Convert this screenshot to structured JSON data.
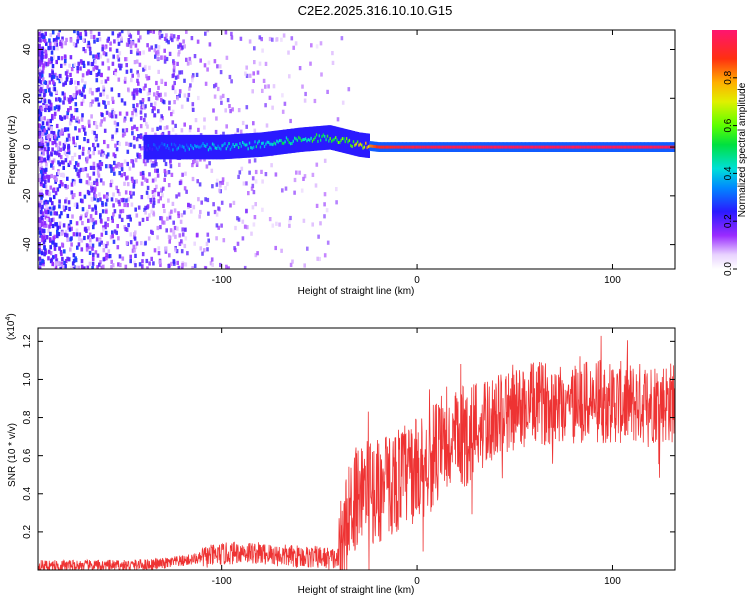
{
  "title": "C2E2.2025.316.10.10.G15",
  "chart_data": [
    {
      "type": "heatmap",
      "xlabel": "Height of straight line (km)",
      "ylabel": "Frequency (Hz)",
      "xlim": [
        -194,
        132
      ],
      "ylim": [
        -50,
        48
      ],
      "xticks": [
        -100,
        0,
        100
      ],
      "yticks": [
        -40,
        -20,
        0,
        20,
        40
      ],
      "colorbar": {
        "label": "Normalized spectral amplitude",
        "range": [
          0,
          1
        ],
        "ticks": [
          "0.0",
          "0.2",
          "0.4",
          "0.6",
          "0.8"
        ]
      },
      "ridge": [
        {
          "x": -140,
          "f": 0,
          "amp": 0.25
        },
        {
          "x": -120,
          "f": 0,
          "amp": 0.35
        },
        {
          "x": -100,
          "f": 0,
          "amp": 0.4
        },
        {
          "x": -80,
          "f": 1,
          "amp": 0.45
        },
        {
          "x": -60,
          "f": 3,
          "amp": 0.5
        },
        {
          "x": -45,
          "f": 4,
          "amp": 0.55
        },
        {
          "x": -30,
          "f": 1,
          "amp": 0.7
        },
        {
          "x": -20,
          "f": 0,
          "amp": 0.9
        },
        {
          "x": 0,
          "f": 0,
          "amp": 0.95
        },
        {
          "x": 50,
          "f": 0,
          "amp": 0.97
        },
        {
          "x": 100,
          "f": 0,
          "amp": 0.97
        },
        {
          "x": 132,
          "f": 0,
          "amp": 0.97
        }
      ],
      "noise_band": {
        "x_from": -194,
        "x_to": -30,
        "f_range": [
          -50,
          48
        ]
      }
    },
    {
      "type": "line",
      "xlabel": "Height of straight line (km)",
      "ylabel": "SNR (10 * v/v)",
      "yscale_label": "(x10",
      "yscale_exp": "4",
      "xlim": [
        -194,
        132
      ],
      "ylim": [
        0,
        1.27
      ],
      "xticks": [
        -100,
        0,
        100
      ],
      "yticks": [
        "0.2",
        "0.4",
        "0.6",
        "0.8",
        "1.0",
        "1.2"
      ],
      "color": "#ee3333",
      "series": [
        {
          "values": [
            {
              "x": -194,
              "y": 0.02
            },
            {
              "x": -150,
              "y": 0.02
            },
            {
              "x": -130,
              "y": 0.03
            },
            {
              "x": -110,
              "y": 0.06
            },
            {
              "x": -90,
              "y": 0.09
            },
            {
              "x": -70,
              "y": 0.07
            },
            {
              "x": -50,
              "y": 0.06
            },
            {
              "x": -40,
              "y": 0.05
            },
            {
              "x": -35,
              "y": 0.25
            },
            {
              "x": -30,
              "y": 0.4
            },
            {
              "x": -20,
              "y": 0.38
            },
            {
              "x": -10,
              "y": 0.45
            },
            {
              "x": 0,
              "y": 0.5
            },
            {
              "x": 10,
              "y": 0.58
            },
            {
              "x": 20,
              "y": 0.64
            },
            {
              "x": 30,
              "y": 0.72
            },
            {
              "x": 40,
              "y": 0.78
            },
            {
              "x": 50,
              "y": 0.82
            },
            {
              "x": 60,
              "y": 0.85
            },
            {
              "x": 70,
              "y": 0.86
            },
            {
              "x": 80,
              "y": 0.86
            },
            {
              "x": 90,
              "y": 0.86
            },
            {
              "x": 100,
              "y": 0.86
            },
            {
              "x": 110,
              "y": 0.85
            },
            {
              "x": 120,
              "y": 0.86
            },
            {
              "x": 132,
              "y": 0.86
            }
          ]
        }
      ]
    }
  ]
}
